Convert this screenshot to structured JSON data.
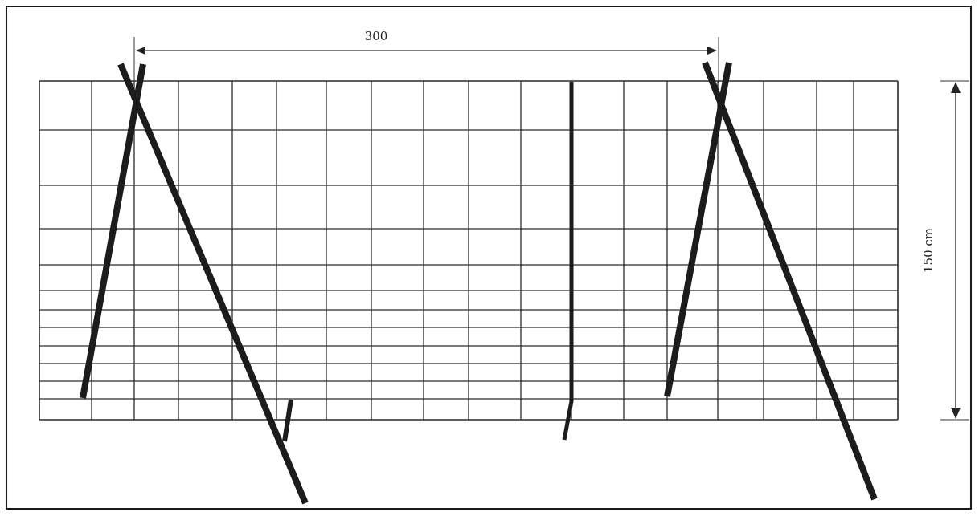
{
  "dimensions": {
    "horizontal_label": "300",
    "vertical_label": "150 cm"
  },
  "colors": {
    "frame": "#1a1a1a",
    "grid": "#2b2b2b",
    "pole": "#1c1c1c",
    "background": "#ffffff"
  }
}
